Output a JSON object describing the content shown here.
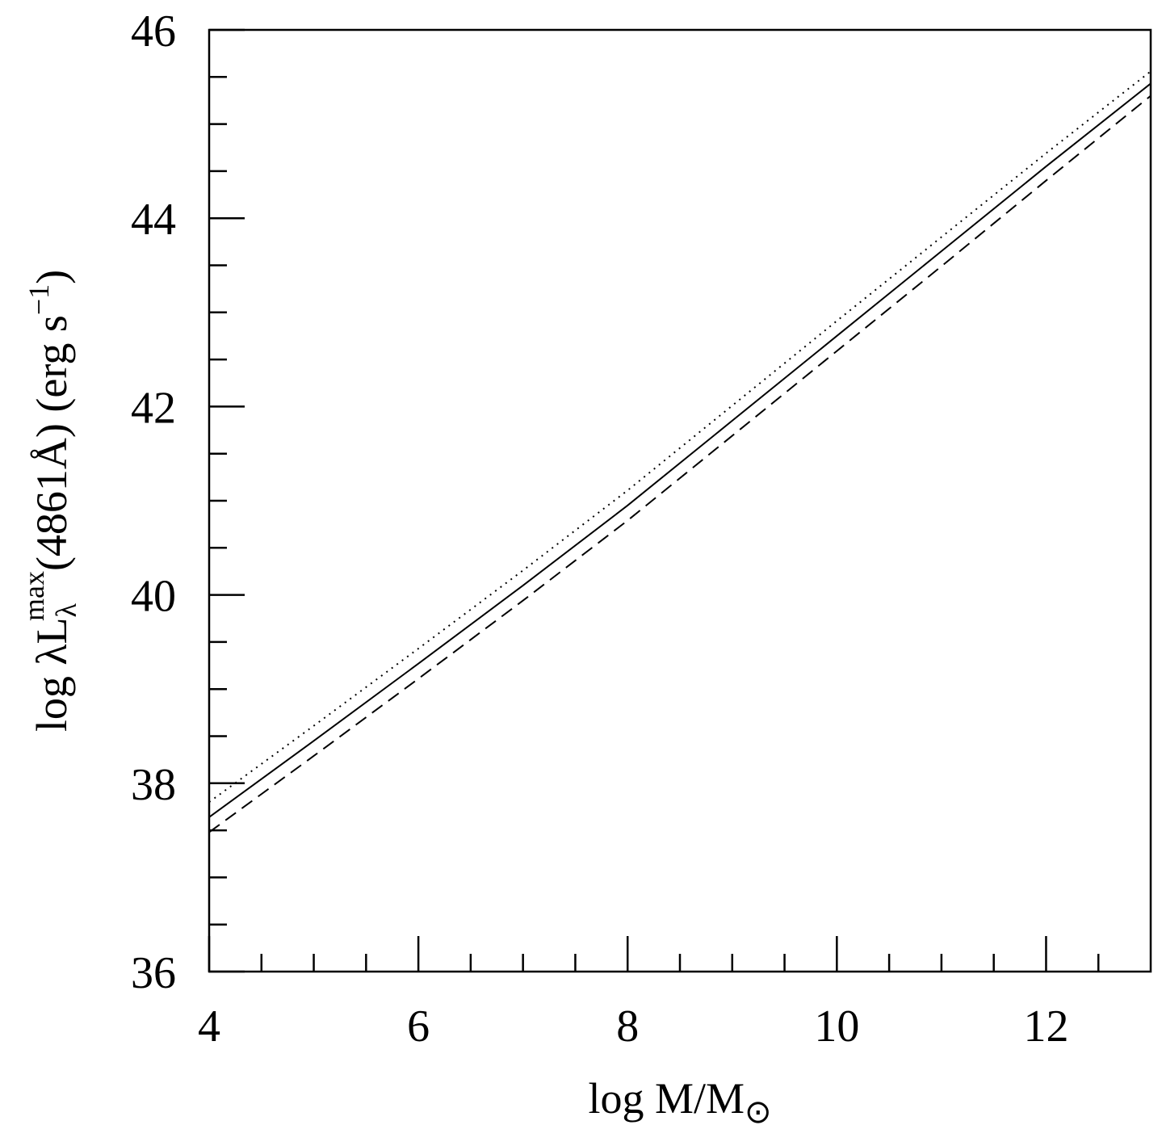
{
  "chart_data": {
    "type": "line",
    "xlabel": [
      "log M/M",
      "⊙"
    ],
    "ylabel": [
      "log λL",
      "λ",
      "max",
      "(4861Å) (erg s",
      "−1",
      ")"
    ],
    "x": [
      4,
      5,
      6,
      7,
      8,
      9,
      10,
      11,
      12,
      13
    ],
    "series": [
      {
        "color": "#000000",
        "dash": "solid",
        "values": [
          37.64,
          38.45,
          39.27,
          40.1,
          40.95,
          41.85,
          42.75,
          43.65,
          44.55,
          45.43
        ]
      },
      {
        "color": "#000000",
        "dash": "dotted",
        "values": [
          37.8,
          38.61,
          39.43,
          40.26,
          41.11,
          42.01,
          42.91,
          43.8,
          44.69,
          45.56
        ]
      },
      {
        "color": "#000000",
        "dash": "dashed",
        "values": [
          37.48,
          38.29,
          39.11,
          39.94,
          40.79,
          41.69,
          42.59,
          43.49,
          44.4,
          45.3
        ]
      }
    ],
    "xlim": [
      4,
      13
    ],
    "xticks": [
      4,
      6,
      8,
      10,
      12
    ],
    "xminorticks": [
      4.5,
      5,
      5.5,
      6.5,
      7,
      7.5,
      8.5,
      9,
      9.5,
      10.5,
      11,
      11.5,
      12.5
    ],
    "ylim": [
      36,
      46
    ],
    "yticks": [
      36,
      38,
      40,
      42,
      44,
      46
    ],
    "yminorticks": [
      36.5,
      37,
      37.5,
      38.5,
      39,
      39.5,
      40.5,
      41,
      41.5,
      42.5,
      43,
      43.5,
      44.5,
      45,
      45.5
    ],
    "grid": false
  }
}
